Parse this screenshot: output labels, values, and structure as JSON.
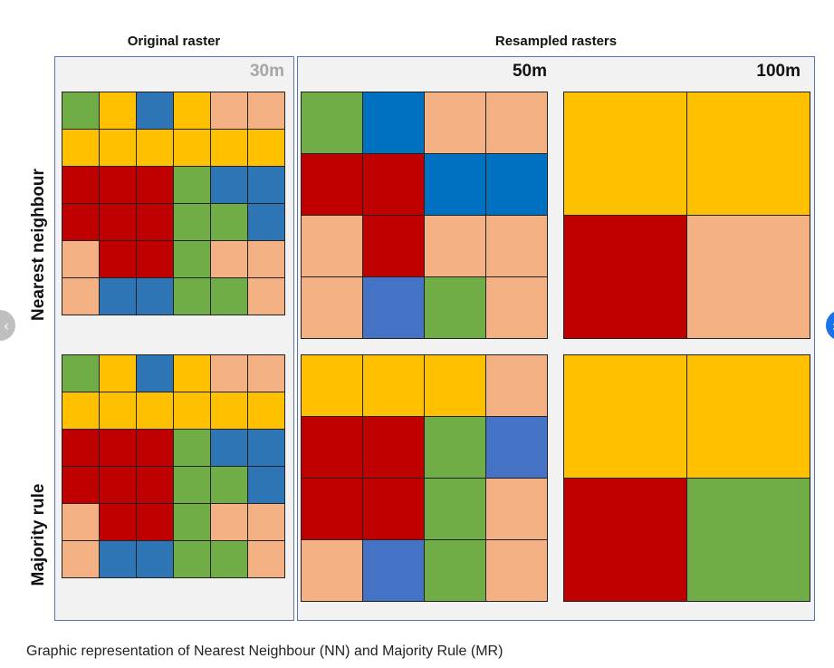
{
  "headers": {
    "original": "Original raster",
    "resampled": "Resampled rasters"
  },
  "resolutions": {
    "r30": "30m",
    "r50": "50m",
    "r100": "100m"
  },
  "row_labels": {
    "nn": "Nearest neighbour",
    "mr": "Majority rule"
  },
  "caption": "Graphic representation of Nearest Neighbour (NN) and Majority Rule (MR)",
  "colors": {
    "G": "#70ad47",
    "Y": "#ffc000",
    "B": "#2e75b6",
    "DB": "#0070c0",
    "LB": "#4472c4",
    "R": "#c00000",
    "P": "#f4b183"
  },
  "rasters": {
    "nn_orig": [
      "G",
      "Y",
      "B",
      "Y",
      "P",
      "P",
      "Y",
      "Y",
      "Y",
      "Y",
      "Y",
      "Y",
      "R",
      "R",
      "R",
      "G",
      "B",
      "B",
      "R",
      "R",
      "R",
      "G",
      "G",
      "B",
      "P",
      "R",
      "R",
      "G",
      "P",
      "P",
      "P",
      "B",
      "B",
      "G",
      "G",
      "P"
    ],
    "nn_50": [
      "G",
      "DB",
      "P",
      "P",
      "R",
      "R",
      "DB",
      "DB",
      "P",
      "R",
      "P",
      "P",
      "P",
      "LB",
      "G",
      "P"
    ],
    "nn_100": [
      "Y",
      "Y",
      "R",
      "P"
    ],
    "mr_orig": [
      "G",
      "Y",
      "B",
      "Y",
      "P",
      "P",
      "Y",
      "Y",
      "Y",
      "Y",
      "Y",
      "Y",
      "R",
      "R",
      "R",
      "G",
      "B",
      "B",
      "R",
      "R",
      "R",
      "G",
      "G",
      "B",
      "P",
      "R",
      "R",
      "G",
      "P",
      "P",
      "P",
      "B",
      "B",
      "G",
      "G",
      "P"
    ],
    "mr_50": [
      "Y",
      "Y",
      "Y",
      "P",
      "R",
      "R",
      "G",
      "LB",
      "R",
      "R",
      "G",
      "P",
      "P",
      "LB",
      "G",
      "P"
    ],
    "mr_100": [
      "Y",
      "Y",
      "R",
      "G"
    ]
  }
}
